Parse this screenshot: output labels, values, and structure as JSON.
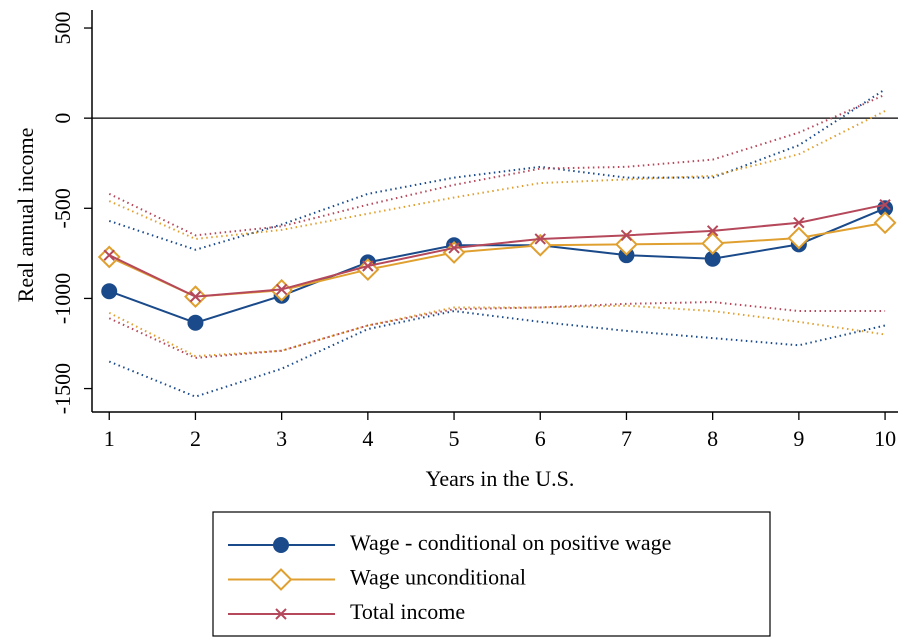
{
  "chart_data": {
    "type": "line",
    "x_label": "Years in the U.S.",
    "y_label": "Real annual income",
    "x": [
      1,
      2,
      3,
      4,
      5,
      6,
      7,
      8,
      9,
      10
    ],
    "xlim": [
      0.8,
      10.15
    ],
    "xticks": [
      1,
      2,
      3,
      4,
      5,
      6,
      7,
      8,
      9,
      10
    ],
    "ylim": [
      -1630,
      600
    ],
    "yticks": [
      -1500,
      -1000,
      -500,
      0,
      500
    ],
    "reference_line": 0,
    "series": [
      {
        "name": "Wage - conditional on positive wage",
        "color": "#1a4a8a",
        "marker": "circle",
        "values": [
          -960,
          -1135,
          -985,
          -800,
          -705,
          -705,
          -760,
          -780,
          -700,
          -500
        ],
        "upper": [
          -570,
          -730,
          -590,
          -420,
          -330,
          -270,
          -330,
          -330,
          -150,
          160
        ],
        "lower": [
          -1350,
          -1545,
          -1390,
          -1170,
          -1070,
          -1130,
          -1180,
          -1220,
          -1260,
          -1150
        ]
      },
      {
        "name": "Wage unconditional",
        "color": "#e0a030",
        "marker": "diamond",
        "values": [
          -770,
          -990,
          -955,
          -840,
          -745,
          -705,
          -700,
          -695,
          -665,
          -580
        ],
        "upper": [
          -460,
          -670,
          -620,
          -530,
          -440,
          -360,
          -340,
          -320,
          -200,
          40
        ],
        "lower": [
          -1080,
          -1320,
          -1290,
          -1150,
          -1050,
          -1050,
          -1040,
          -1070,
          -1130,
          -1200
        ]
      },
      {
        "name": "Total income",
        "color": "#b5485a",
        "marker": "x",
        "values": [
          -760,
          -990,
          -950,
          -820,
          -720,
          -670,
          -650,
          -625,
          -580,
          -480
        ],
        "upper": [
          -420,
          -650,
          -600,
          -480,
          -370,
          -280,
          -270,
          -230,
          -80,
          130
        ],
        "lower": [
          -1110,
          -1330,
          -1290,
          -1150,
          -1060,
          -1050,
          -1030,
          -1020,
          -1070,
          -1070
        ]
      }
    ]
  }
}
